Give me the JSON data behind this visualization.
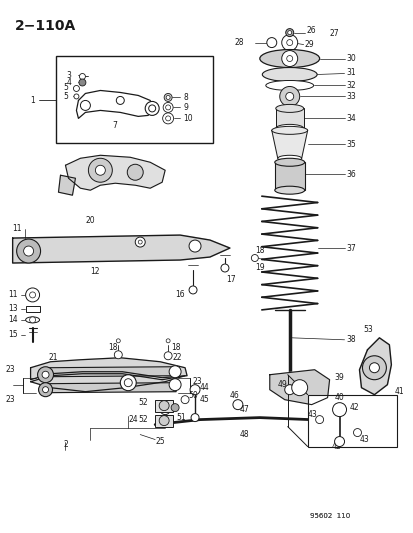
{
  "title": "2−110A",
  "bg_color": "#ffffff",
  "line_color": "#1a1a1a",
  "fig_width": 4.14,
  "fig_height": 5.33,
  "dpi": 100,
  "watermark": "95602 110"
}
